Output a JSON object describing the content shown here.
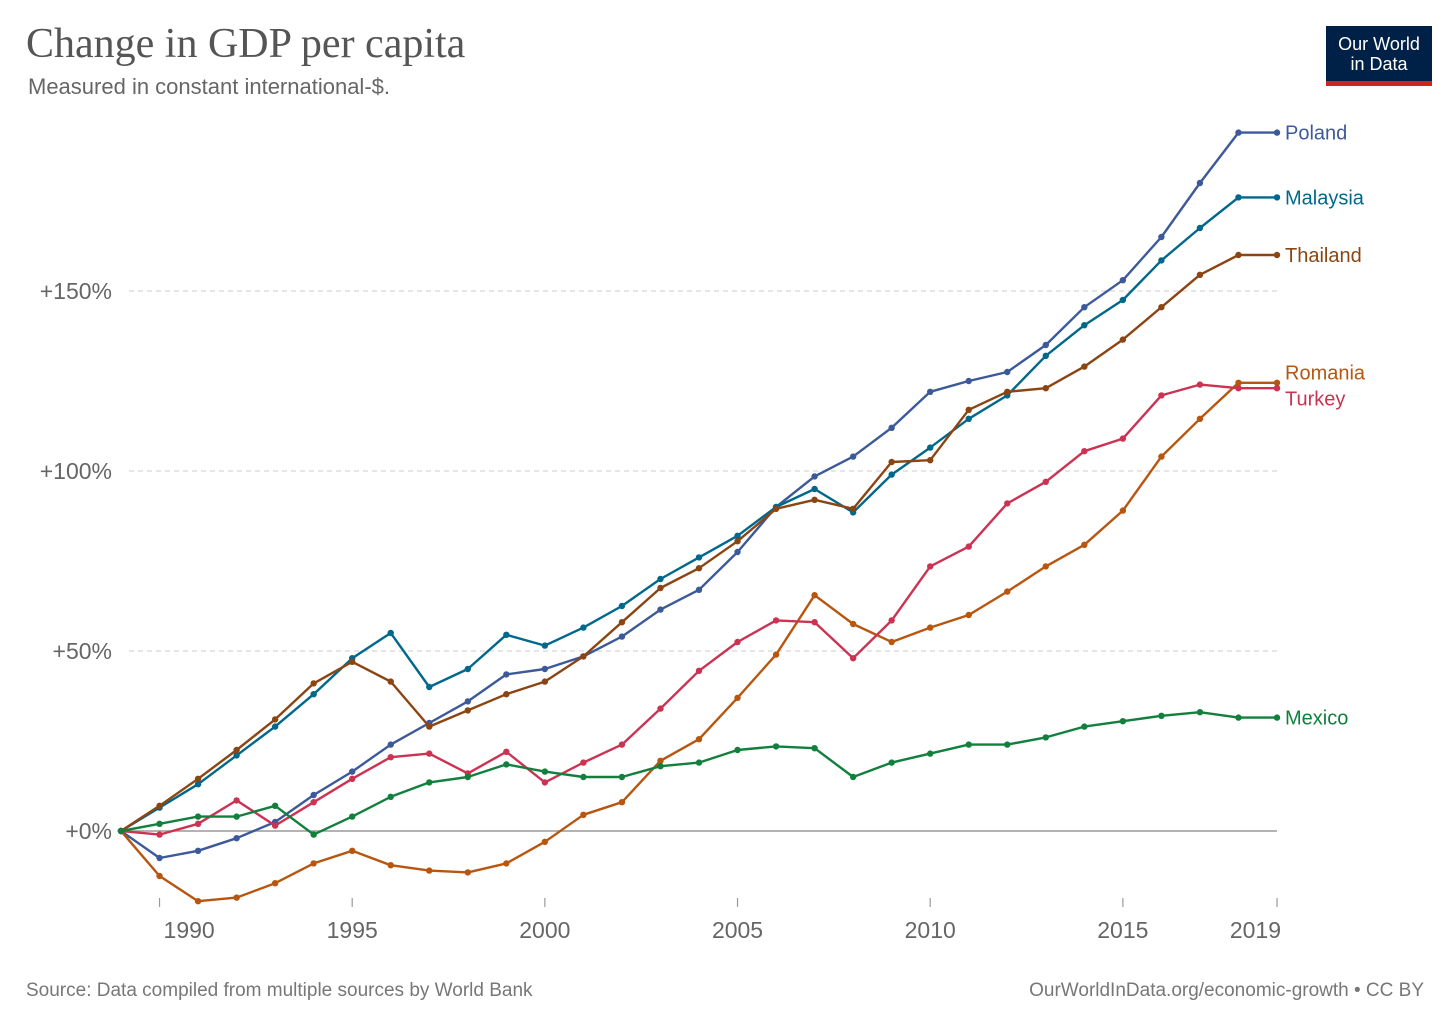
{
  "header": {
    "title": "Change in GDP per capita",
    "subtitle": "Measured in constant international-$.",
    "logo_line1": "Our World",
    "logo_line2": "in Data"
  },
  "footer": {
    "source": "Source: Data compiled from multiple sources by World Bank",
    "credit": "OurWorldInData.org/economic-growth • CC BY"
  },
  "chart_data": {
    "type": "line",
    "title": "Change in GDP per capita",
    "subtitle": "Measured in constant international-$.",
    "xlabel": "",
    "ylabel": "",
    "xlim": [
      1989,
      2019
    ],
    "ylim": [
      -20,
      195
    ],
    "grid": true,
    "x_ticks": [
      1990,
      1995,
      2000,
      2005,
      2010,
      2015,
      2019
    ],
    "x_tick_labels": [
      "1990",
      "1995",
      "2000",
      "2005",
      "2010",
      "2015",
      "2019"
    ],
    "y_ticks": [
      0,
      50,
      100,
      150
    ],
    "y_tick_labels": [
      "+0%",
      "+50%",
      "+100%",
      "+150%"
    ],
    "x": [
      1989,
      1990,
      1991,
      1992,
      1993,
      1994,
      1995,
      1996,
      1997,
      1998,
      1999,
      2000,
      2001,
      2002,
      2003,
      2004,
      2005,
      2006,
      2007,
      2008,
      2009,
      2010,
      2011,
      2012,
      2013,
      2014,
      2015,
      2016,
      2017,
      2018,
      2019
    ],
    "series": [
      {
        "name": "Poland",
        "color": "#3c5a99",
        "values": [
          0,
          -7.5,
          -5.5,
          -2,
          2.5,
          10,
          16.5,
          24,
          30,
          36,
          43.5,
          45,
          48.5,
          54,
          61.5,
          67,
          77.5,
          90,
          98.5,
          104,
          112,
          122,
          125,
          127.5,
          135,
          145.5,
          153,
          165,
          180,
          194,
          194
        ]
      },
      {
        "name": "Malaysia",
        "color": "#00688b",
        "values": [
          0,
          6.5,
          13,
          21,
          29,
          38,
          48,
          55,
          40,
          45,
          54.5,
          51.5,
          56.5,
          62.5,
          70,
          76,
          82,
          90,
          95,
          88.5,
          99,
          106.5,
          114.5,
          121,
          132,
          140.5,
          147.5,
          158.5,
          167.5,
          176,
          176
        ]
      },
      {
        "name": "Thailand",
        "color": "#8b4513",
        "values": [
          0,
          7,
          14.5,
          22.5,
          31,
          41,
          47,
          41.5,
          29,
          33.5,
          38,
          41.5,
          48.5,
          58,
          67.5,
          73,
          80.5,
          89.5,
          92,
          89.5,
          102.5,
          103,
          117,
          122,
          123,
          129,
          136.5,
          145.5,
          154.5,
          160,
          160
        ]
      },
      {
        "name": "Romania",
        "color": "#b8560f",
        "values": [
          0,
          -12.5,
          -19.5,
          -18.5,
          -14.5,
          -9,
          -5.5,
          -9.5,
          -11,
          -11.5,
          -9,
          -3,
          4.5,
          8,
          19.5,
          25.5,
          37,
          49,
          65.5,
          57.5,
          52.5,
          56.5,
          60,
          66.5,
          73.5,
          79.5,
          89,
          104,
          114.5,
          124.5,
          124.5
        ]
      },
      {
        "name": "Turkey",
        "color": "#cc3352",
        "values": [
          0,
          -1,
          2,
          8.5,
          1.5,
          8,
          14.5,
          20.5,
          21.5,
          16,
          22,
          13.5,
          19,
          24,
          34,
          44.5,
          52.5,
          58.5,
          58,
          48,
          58.5,
          73.5,
          79,
          91,
          97,
          105.5,
          109,
          121,
          124,
          123,
          123
        ]
      },
      {
        "name": "Mexico",
        "color": "#12803d",
        "values": [
          0,
          2,
          4,
          4,
          7,
          -1,
          4,
          9.5,
          13.5,
          15,
          18.5,
          16.5,
          15,
          15,
          18,
          19,
          22.5,
          23.5,
          23,
          15,
          19,
          21.5,
          24,
          24,
          26,
          29,
          30.5,
          32,
          33,
          31.5,
          31.5
        ]
      }
    ]
  }
}
